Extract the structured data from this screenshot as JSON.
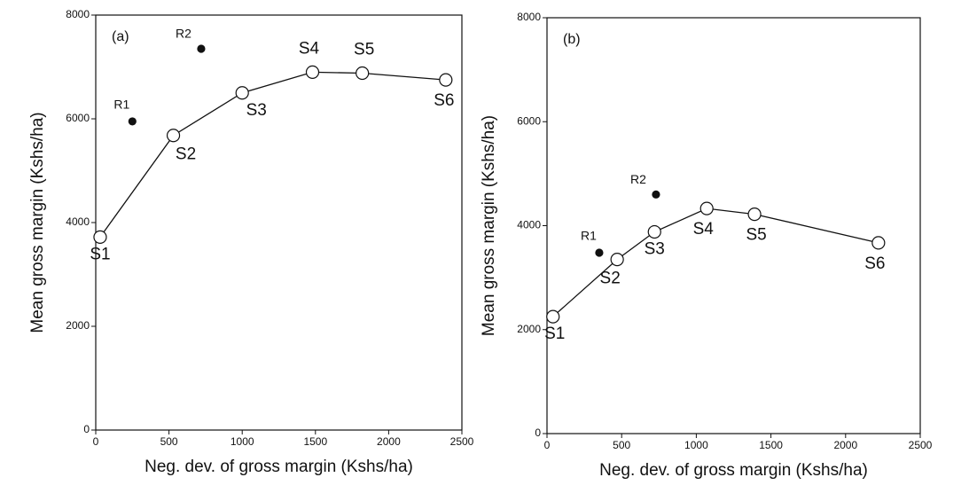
{
  "chart_data": [
    {
      "type": "scatter",
      "panel_label": "(a)",
      "x_label": "Neg. dev. of gross margin (Kshs/ha)",
      "y_label": "Mean gross margin (Kshs/ha)",
      "xlim": [
        0,
        2500
      ],
      "ylim": [
        0,
        8000
      ],
      "xticks": [
        0,
        500,
        1000,
        1500,
        2000,
        2500
      ],
      "yticks": [
        0,
        2000,
        4000,
        6000,
        8000
      ],
      "series": [
        {
          "color": "#111111",
          "line": true,
          "marker": "open",
          "x": [
            30,
            530,
            1000,
            1480,
            1820,
            2390
          ],
          "values": [
            3720,
            5680,
            6500,
            6900,
            6880,
            6750
          ],
          "point_labels": [
            "S1",
            "S2",
            "S3",
            "S4",
            "S5",
            "S6"
          ]
        },
        {
          "color": "#111111",
          "line": false,
          "marker": "filled",
          "x": [
            250,
            720
          ],
          "values": [
            5950,
            7350
          ],
          "point_labels": [
            "R1",
            "R2"
          ]
        }
      ]
    },
    {
      "type": "scatter",
      "panel_label": "(b)",
      "x_label": "Neg. dev. of gross margin (Kshs/ha)",
      "y_label": "Mean gross margin (Kshs/ha)",
      "xlim": [
        0,
        2500
      ],
      "ylim": [
        0,
        8000
      ],
      "xticks": [
        0,
        500,
        1000,
        1500,
        2000,
        2500
      ],
      "yticks": [
        0,
        2000,
        4000,
        6000,
        8000
      ],
      "series": [
        {
          "color": "#111111",
          "line": true,
          "marker": "open",
          "x": [
            40,
            470,
            720,
            1070,
            1390,
            2220
          ],
          "values": [
            2250,
            3350,
            3880,
            4330,
            4220,
            3670
          ],
          "point_labels": [
            "S1",
            "S2",
            "S3",
            "S4",
            "S5",
            "S6"
          ]
        },
        {
          "color": "#111111",
          "line": false,
          "marker": "filled",
          "x": [
            350,
            730
          ],
          "values": [
            3480,
            4600
          ],
          "point_labels": [
            "R1",
            "R2"
          ]
        }
      ]
    }
  ]
}
